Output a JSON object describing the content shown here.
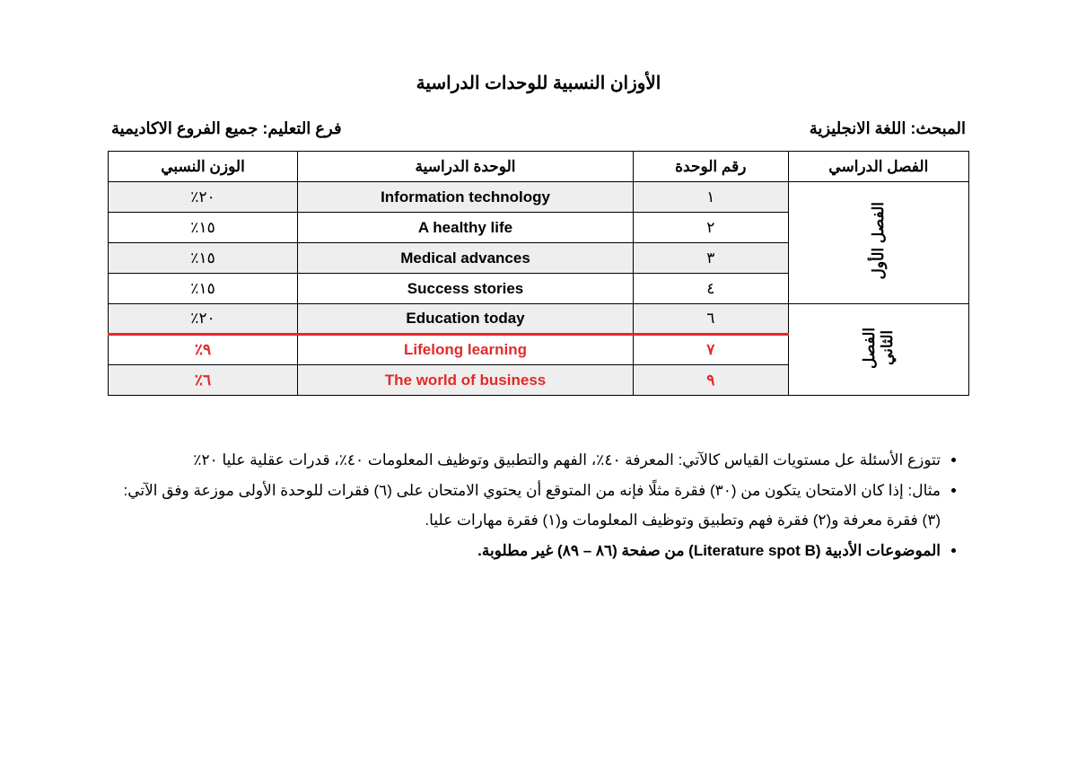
{
  "title": "الأوزان النسبية للوحدات الدراسية",
  "meta": {
    "subject_label": "المبحث: ",
    "subject_value": "اللغة الانجليزية",
    "branch_label": "فرع التعليم: ",
    "branch_value": "جميع الفروع الاكاديمية"
  },
  "table": {
    "headers": {
      "semester": "الفصل الدراسي",
      "unit_no": "رقم الوحدة",
      "unit_name": "الوحدة الدراسية",
      "weight": "الوزن النسبي"
    },
    "col_widths": {
      "semester": "21%",
      "unit_no": "18%",
      "unit_name": "39%",
      "weight": "22%"
    },
    "semesters": {
      "first": "الفصل الأول",
      "second": "الفصل الثاني"
    },
    "rows": [
      {
        "no": "١",
        "name": "Information technology",
        "weight": "٢٠٪",
        "stripe": true,
        "red": false
      },
      {
        "no": "٢",
        "name": "A healthy life",
        "weight": "١٥٪",
        "stripe": false,
        "red": false
      },
      {
        "no": "٣",
        "name": "Medical advances",
        "weight": "١٥٪",
        "stripe": true,
        "red": false
      },
      {
        "no": "٤",
        "name": "Success stories",
        "weight": "١٥٪",
        "stripe": false,
        "red": false
      },
      {
        "no": "٦",
        "name": "Education today",
        "weight": "٢٠٪",
        "stripe": true,
        "red": false
      },
      {
        "no": "٧",
        "name": "Lifelong learning",
        "weight": "٩٪",
        "stripe": false,
        "red": true
      },
      {
        "no": "٩",
        "name": "The world of business",
        "weight": "٦٪",
        "stripe": true,
        "red": true
      }
    ],
    "first_span": 4,
    "second_span": 3,
    "header_bg": "#ffffff",
    "stripe_bg": "#eeeeee",
    "border_color": "#000000",
    "red_color": "#e32929",
    "red_divider_index": 5
  },
  "notes": {
    "items": [
      "تتوزع الأسئلة عل مستويات القياس كالآتي: المعرفة ٤٠٪، الفهم والتطبيق وتوظيف المعلومات ٤٠٪، قدرات عقلية عليا ٢٠٪",
      "مثال: إذا كان الامتحان يتكون من (٣٠) فقرة مثلًا فإنه من المتوقع أن يحتوي الامتحان على (٦) فقرات للوحدة الأولى موزعة وفق الآتي: (٣) فقرة معرفة و(٢) فقرة فهم وتطبيق وتوظيف المعلومات و(١) فقرة مهارات عليا."
    ],
    "bold_item_prefix": "الموضوعات الأدبية (",
    "bold_item_ltr": "Literature spot B",
    "bold_item_suffix": ")  من صفحة (٨٦ – ٨٩) غير مطلوبة."
  }
}
